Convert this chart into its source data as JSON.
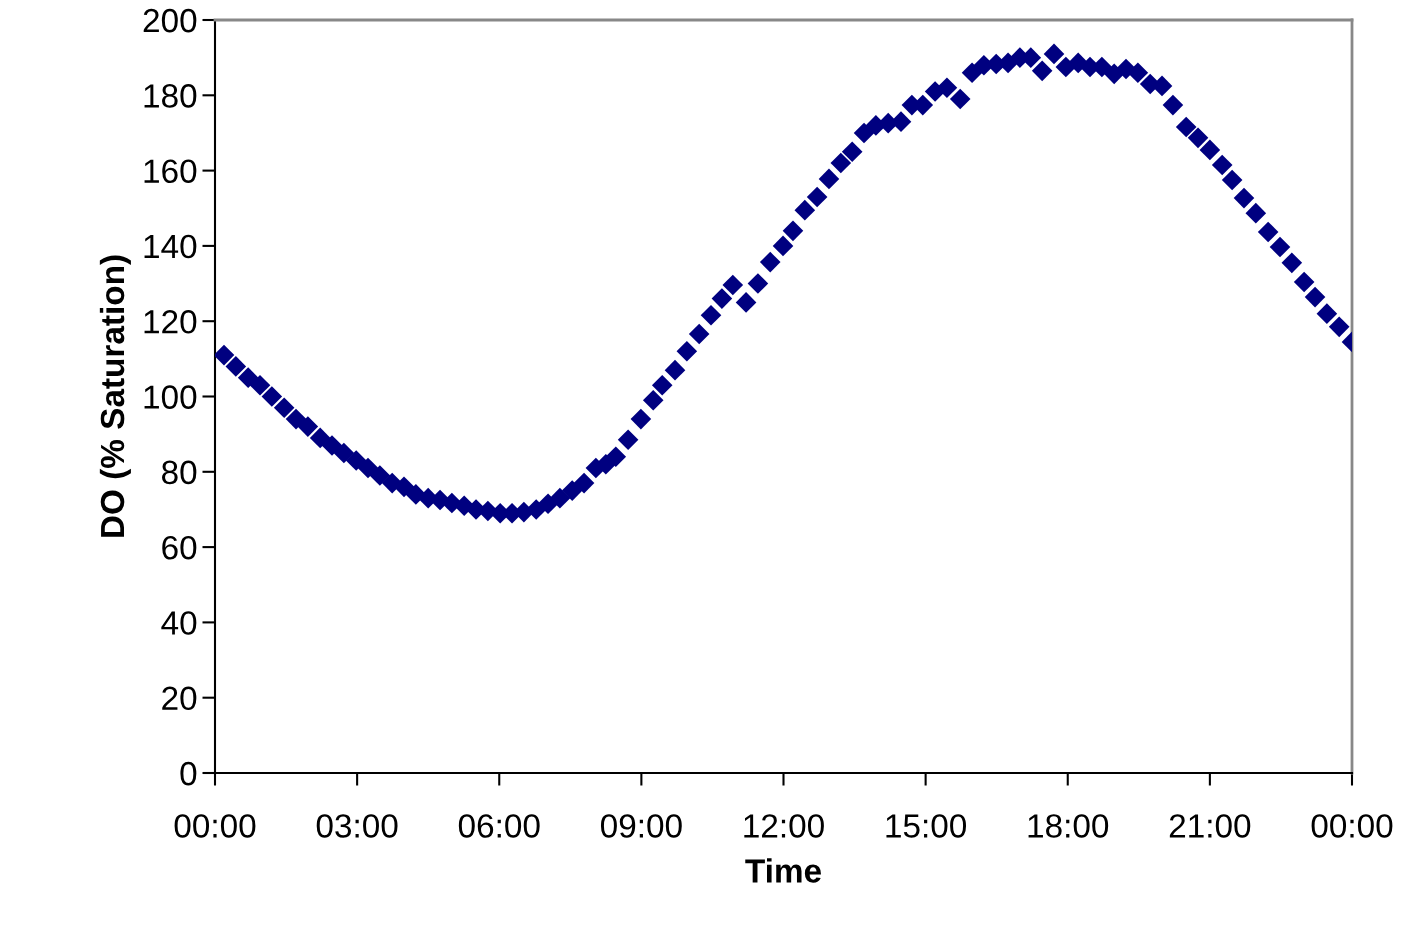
{
  "chart_data": {
    "type": "scatter",
    "xlabel": "Time",
    "ylabel": "DO (% Saturation)",
    "x": [
      0.19,
      0.44,
      0.7,
      0.95,
      1.2,
      1.46,
      1.71,
      1.96,
      2.22,
      2.47,
      2.72,
      2.98,
      3.23,
      3.48,
      3.74,
      3.99,
      4.24,
      4.5,
      4.75,
      5.0,
      5.26,
      5.51,
      5.76,
      6.02,
      6.27,
      6.52,
      6.78,
      7.03,
      7.28,
      7.54,
      7.79,
      8.04,
      8.25,
      8.46,
      8.72,
      8.99,
      9.25,
      9.44,
      9.71,
      9.96,
      10.22,
      10.47,
      10.7,
      10.93,
      11.21,
      11.46,
      11.72,
      11.99,
      12.2,
      12.45,
      12.71,
      12.96,
      13.21,
      13.45,
      13.7,
      13.95,
      14.21,
      14.48,
      14.71,
      14.94,
      15.2,
      15.45,
      15.73,
      15.98,
      16.23,
      16.49,
      16.74,
      16.99,
      17.22,
      17.46,
      17.71,
      17.96,
      18.22,
      18.47,
      18.72,
      18.98,
      19.23,
      19.48,
      19.74,
      19.99,
      20.22,
      20.5,
      20.75,
      21.0,
      21.26,
      21.47,
      21.72,
      21.97,
      22.23,
      22.48,
      22.73,
      22.99,
      23.22,
      23.47,
      23.73,
      24.0
    ],
    "series": [
      {
        "color": "#000080",
        "values": [
          111,
          108,
          105,
          103,
          100,
          97,
          94,
          92,
          89,
          87,
          85,
          83,
          81,
          79,
          77,
          76,
          74,
          73,
          72.5,
          71.7,
          71,
          70,
          69.6,
          69,
          69,
          69.3,
          70,
          71.5,
          73,
          75,
          77,
          81,
          82,
          84,
          88.5,
          94,
          99,
          103,
          107,
          112,
          116.6,
          121.6,
          126,
          129.6,
          125,
          130,
          135.7,
          140,
          144,
          149.5,
          153,
          157.8,
          162,
          165,
          170,
          172,
          172.6,
          173,
          177.4,
          177.4,
          181,
          182,
          179,
          186,
          188,
          188.3,
          188.6,
          190,
          190,
          186.5,
          191,
          187.5,
          188.6,
          187.5,
          187.5,
          185.7,
          187,
          186,
          183,
          182.5,
          177.4,
          171.6,
          168.7,
          165.5,
          161.5,
          157.5,
          152.7,
          148.7,
          143.7,
          139.7,
          135.5,
          130.4,
          126.4,
          122,
          118.5,
          114.5
        ]
      }
    ],
    "xlim": [
      0,
      24
    ],
    "xticks": [
      {
        "value": 0,
        "label": "00:00"
      },
      {
        "value": 3,
        "label": "03:00"
      },
      {
        "value": 6,
        "label": "06:00"
      },
      {
        "value": 9,
        "label": "09:00"
      },
      {
        "value": 12,
        "label": "12:00"
      },
      {
        "value": 15,
        "label": "15:00"
      },
      {
        "value": 18,
        "label": "18:00"
      },
      {
        "value": 21,
        "label": "21:00"
      },
      {
        "value": 24,
        "label": "00:00"
      }
    ],
    "ylim": [
      0,
      200
    ],
    "yticks": [
      0,
      20,
      40,
      60,
      80,
      100,
      120,
      140,
      160,
      180,
      200
    ],
    "marker": "diamond",
    "grid": false,
    "legend": false
  }
}
